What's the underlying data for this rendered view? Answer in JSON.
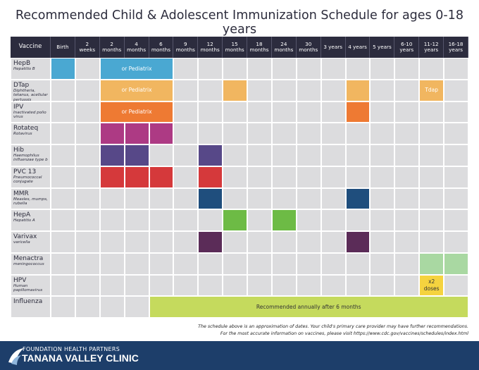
{
  "header": {
    "title": "Recommended Child & Adolescent Immunization Schedule for ages 0-18 years"
  },
  "table": {
    "vaccine_header": "Vaccine",
    "columns": [
      "Birth",
      "2 weeks",
      "2 months",
      "4 months",
      "6 months",
      "9 months",
      "12 months",
      "15 months",
      "18 months",
      "24 months",
      "30 months",
      "3 years",
      "4 years",
      "5 years",
      "6-10 years",
      "11-12 years",
      "16-18 years"
    ],
    "rows": [
      {
        "name": "HepB",
        "description": "Hepatitis B",
        "color": "#4aa8d2",
        "cells": [
          {
            "span": 1
          },
          null,
          {
            "span": 3,
            "label": "or Pediatrix"
          },
          null,
          null,
          null,
          null,
          null,
          null,
          null,
          null,
          null,
          null,
          null,
          null
        ]
      },
      {
        "name": "DTap",
        "description": "Diphtheria, tetanus, acellular pertussis",
        "color": "#f1b660",
        "cells": [
          null,
          null,
          {
            "span": 3,
            "label": "or Pediatrix"
          },
          null,
          null,
          {
            "span": 1
          },
          null,
          null,
          null,
          null,
          {
            "span": 1
          },
          null,
          null,
          {
            "span": 1,
            "label": "Tdap"
          },
          null
        ]
      },
      {
        "name": "IPV",
        "description": "Inactivated polio virus",
        "color": "#ee7a33",
        "cells": [
          null,
          null,
          {
            "span": 3,
            "label": "or Pediatrix"
          },
          null,
          null,
          null,
          null,
          null,
          null,
          null,
          {
            "span": 1
          },
          null,
          null,
          null,
          null
        ]
      },
      {
        "name": "Rotateq",
        "description": "Rotavirus",
        "color": "#ad3a84",
        "cells": [
          null,
          null,
          {
            "span": 1
          },
          {
            "span": 1
          },
          {
            "span": 1
          },
          null,
          null,
          null,
          null,
          null,
          null,
          null,
          null,
          null,
          null,
          null,
          null
        ]
      },
      {
        "name": "Hib",
        "description": "Haemophilus influenzae type b",
        "color": "#574888",
        "cells": [
          null,
          null,
          {
            "span": 1
          },
          {
            "span": 1
          },
          null,
          null,
          {
            "span": 1
          },
          null,
          null,
          null,
          null,
          null,
          null,
          null,
          null,
          null,
          null
        ]
      },
      {
        "name": "PVC 13",
        "description": "Pneumococcal conjugate",
        "color": "#d5393b",
        "cells": [
          null,
          null,
          {
            "span": 1
          },
          {
            "span": 1
          },
          {
            "span": 1
          },
          null,
          {
            "span": 1
          },
          null,
          null,
          null,
          null,
          null,
          null,
          null,
          null,
          null,
          null
        ]
      },
      {
        "name": "MMR",
        "description": "Measles, mumps, rubella",
        "color": "#1f4e7d",
        "cells": [
          null,
          null,
          null,
          null,
          null,
          null,
          {
            "span": 1
          },
          null,
          null,
          null,
          null,
          null,
          {
            "span": 1
          },
          null,
          null,
          null,
          null
        ]
      },
      {
        "name": "HepA",
        "description": "Hepatitis A",
        "color": "#6dbb45",
        "cells": [
          null,
          null,
          null,
          null,
          null,
          null,
          null,
          {
            "span": 1
          },
          null,
          {
            "span": 1
          },
          null,
          null,
          null,
          null,
          null,
          null,
          null
        ]
      },
      {
        "name": "Varivax",
        "description": "varicella",
        "color": "#5b2c58",
        "cells": [
          null,
          null,
          null,
          null,
          null,
          null,
          {
            "span": 1
          },
          null,
          null,
          null,
          null,
          null,
          {
            "span": 1
          },
          null,
          null,
          null,
          null
        ]
      },
      {
        "name": "Menactra",
        "description": "meningococcus",
        "color": "#a9d8a2",
        "cells": [
          null,
          null,
          null,
          null,
          null,
          null,
          null,
          null,
          null,
          null,
          null,
          null,
          null,
          null,
          null,
          {
            "span": 1
          },
          {
            "span": 1
          }
        ]
      },
      {
        "name": "HPV",
        "description": "Human papillomavirus",
        "color": "#f5d33f",
        "cells": [
          null,
          null,
          null,
          null,
          null,
          null,
          null,
          null,
          null,
          null,
          null,
          null,
          null,
          null,
          null,
          {
            "span": 1,
            "label": "x2 doses"
          },
          null
        ]
      },
      {
        "name": "Influenza",
        "color": "#c5da5d",
        "cells": [
          null,
          null,
          null,
          null,
          {
            "span": 13,
            "label": "Recommended annually after 6 months"
          }
        ]
      }
    ]
  },
  "notes": [
    "The schedule above is an approximation of dates. Your child's primary care provider may have further recommendations.",
    "For the most accurate information on vaccines, please visit https://www.cdc.gov/vaccines/schedules/index.html"
  ],
  "footer": {
    "org": "FOUNDATION HEALTH PARTNERS",
    "clinic": "TANANA VALLEY CLINIC"
  }
}
